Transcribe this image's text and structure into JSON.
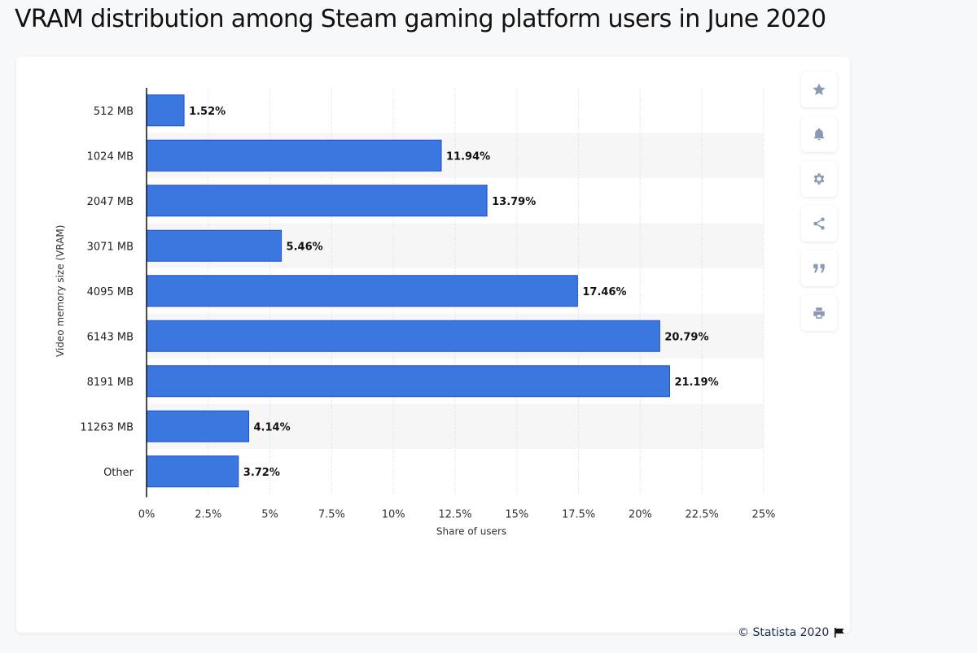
{
  "page_title": "VRAM distribution among Steam gaming platform users in June 2020",
  "credit": "© Statista 2020",
  "toolbar": [
    {
      "name": "favorite",
      "icon": "star-icon"
    },
    {
      "name": "notify",
      "icon": "bell-icon"
    },
    {
      "name": "settings",
      "icon": "gear-icon"
    },
    {
      "name": "share",
      "icon": "share-icon"
    },
    {
      "name": "cite",
      "icon": "quote-icon"
    },
    {
      "name": "print",
      "icon": "printer-icon"
    }
  ],
  "colors": {
    "bar": "#3a78e0",
    "bar_border": "#1c4fd6",
    "band": "#f6f6f6"
  },
  "chart_data": {
    "type": "bar",
    "orientation": "horizontal",
    "title": "VRAM distribution among Steam gaming platform users in June 2020",
    "categories": [
      "512 MB",
      "1024 MB",
      "2047 MB",
      "3071 MB",
      "4095 MB",
      "6143 MB",
      "8191 MB",
      "11263 MB",
      "Other"
    ],
    "values": [
      1.52,
      11.94,
      13.79,
      5.46,
      17.46,
      20.79,
      21.19,
      4.14,
      3.72
    ],
    "data_labels": [
      "1.52%",
      "11.94%",
      "13.79%",
      "5.46%",
      "17.46%",
      "20.79%",
      "21.19%",
      "4.14%",
      "3.72%"
    ],
    "xlabel": "Share of users",
    "ylabel": "Video memory size (VRAM)",
    "xlim": [
      0,
      25
    ],
    "xticks": [
      0,
      2.5,
      5,
      7.5,
      10,
      12.5,
      15,
      17.5,
      20,
      22.5,
      25
    ],
    "xtick_labels": [
      "0%",
      "2.5%",
      "5%",
      "7.5%",
      "10%",
      "12.5%",
      "15%",
      "17.5%",
      "20%",
      "22.5%",
      "25%"
    ],
    "grid": "vertical-dotted",
    "legend": "none"
  }
}
